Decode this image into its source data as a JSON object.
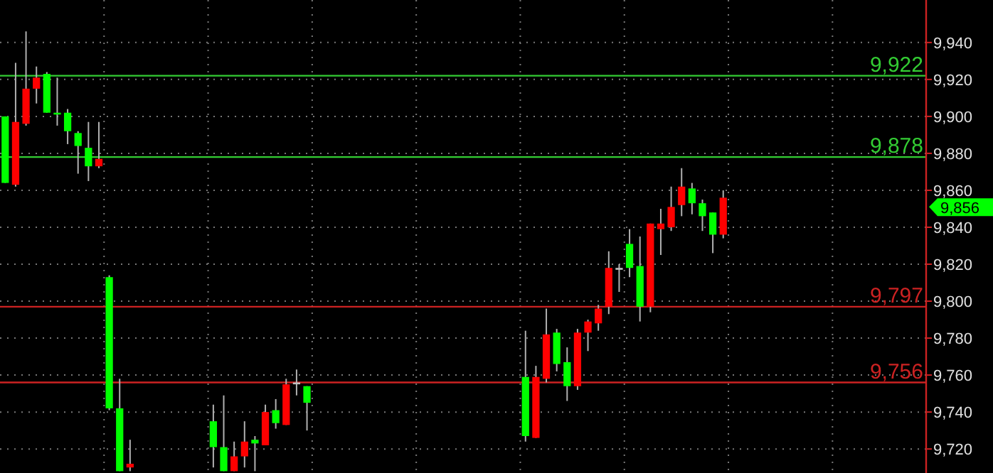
{
  "chart_data": {
    "type": "candlestick",
    "categories": [
      null,
      null,
      null,
      null,
      null,
      null,
      null,
      null,
      null,
      null,
      null,
      null,
      null,
      null,
      null,
      null,
      null,
      null,
      null,
      null,
      null,
      null,
      null,
      null,
      null,
      null,
      null,
      null,
      null,
      null,
      null,
      null,
      null,
      null,
      null,
      null,
      null,
      null,
      null,
      null,
      null,
      null,
      null,
      null,
      null,
      null,
      null,
      null,
      null,
      null,
      null,
      null,
      null,
      null,
      null,
      null,
      null,
      null,
      null,
      null,
      null,
      null,
      null,
      null,
      null,
      null,
      null,
      null,
      null,
      null,
      null,
      null,
      null,
      null,
      null,
      null,
      null,
      null,
      null,
      null,
      null,
      null,
      null,
      null,
      null,
      null,
      null,
      null,
      null
    ],
    "ohlc": [
      [
        9864,
        9900,
        9864,
        9900
      ],
      [
        9897,
        9929,
        9862,
        9863
      ],
      [
        9915,
        9946,
        9895,
        9896
      ],
      [
        9921,
        9927,
        9907,
        9915
      ],
      [
        9902,
        9924,
        9902,
        9923
      ],
      [
        9901,
        9921,
        9895,
        9902
      ],
      [
        9892,
        9904,
        9885,
        9902
      ],
      [
        9884,
        9892,
        9869,
        9891
      ],
      [
        9873,
        9897,
        9865,
        9883
      ],
      [
        9877,
        9897,
        9872,
        9873
      ],
      [
        9742,
        9814,
        9741,
        9813
      ],
      [
        9708,
        9758,
        9708,
        9742
      ],
      [
        9712,
        9725,
        9708,
        9710
      ],
      null,
      null,
      null,
      null,
      null,
      null,
      null,
      [
        9721,
        9744,
        9710,
        9735
      ],
      [
        9708,
        9749,
        9708,
        9721
      ],
      [
        9716,
        9724,
        9708,
        9708
      ],
      [
        9724,
        9735,
        9710,
        9716
      ],
      [
        9723,
        9727,
        9708,
        9725
      ],
      [
        9740,
        9744,
        9722,
        9722
      ],
      [
        9734,
        9747,
        9731,
        9741
      ],
      [
        9755,
        9758,
        9733,
        9733
      ],
      [
        9756,
        9763,
        9749,
        9755
      ],
      [
        9745,
        9754,
        9730,
        9754
      ],
      null,
      null,
      null,
      null,
      null,
      null,
      null,
      null,
      null,
      null,
      null,
      null,
      null,
      null,
      null,
      null,
      null,
      null,
      null,
      null,
      [
        9727,
        9784,
        9724,
        9759
      ],
      [
        9759,
        9765,
        9726,
        9726
      ],
      [
        9782,
        9796,
        9756,
        9758
      ],
      [
        9766,
        9785,
        9762,
        9783
      ],
      [
        9754,
        9775,
        9746,
        9767
      ],
      [
        9783,
        9785,
        9752,
        9754
      ],
      [
        9789,
        9790,
        9773,
        9783
      ],
      [
        9796,
        9798,
        9784,
        9788
      ],
      [
        9818,
        9827,
        9793,
        9797
      ],
      [
        9818,
        9820,
        9805,
        9817
      ],
      [
        9818,
        9839,
        9813,
        9831
      ],
      [
        9797,
        9835,
        9789,
        9819
      ],
      [
        9842,
        9842,
        9794,
        9797
      ],
      [
        9842,
        9850,
        9825,
        9839
      ],
      [
        9851,
        9862,
        9838,
        9840
      ],
      [
        9862,
        9872,
        9846,
        9852
      ],
      [
        9853,
        9864,
        9847,
        9861
      ],
      [
        9846,
        9855,
        9838,
        9853
      ],
      [
        9836,
        9848,
        9826,
        9848
      ],
      [
        9856,
        9860,
        9834,
        9836
      ],
      null,
      null,
      null,
      null,
      null,
      null,
      null,
      null,
      null,
      null,
      null,
      null,
      null,
      null,
      null,
      null,
      null,
      null,
      null
    ],
    "colors": [
      "#00ff00",
      "#ff0000",
      "#ff0000",
      "#ff0000",
      "#00ff00",
      "#00ff00",
      "#00ff00",
      "#00ff00",
      "#00ff00",
      "#ff0000",
      "#00ff00",
      "#00ff00",
      "#ff0000",
      null,
      null,
      null,
      null,
      null,
      null,
      null,
      "#00ff00",
      "#00ff00",
      "#ff0000",
      "#ff0000",
      "#00ff00",
      "#ff0000",
      "#00ff00",
      "#ff0000",
      "#c0c0c0",
      "#00ff00",
      null,
      null,
      null,
      null,
      null,
      null,
      null,
      null,
      null,
      null,
      null,
      null,
      null,
      null,
      null,
      null,
      null,
      null,
      null,
      null,
      "#00ff00",
      "#ff0000",
      "#ff0000",
      "#00ff00",
      "#00ff00",
      "#ff0000",
      "#ff0000",
      "#ff0000",
      "#ff0000",
      "#c0c0c0",
      "#00ff00",
      "#00ff00",
      "#ff0000",
      "#ff0000",
      "#ff0000",
      "#ff0000",
      "#00ff00",
      "#00ff00",
      "#00ff00",
      "#ff0000",
      null,
      null,
      null,
      null,
      null,
      null,
      null,
      null,
      null,
      null,
      null,
      null,
      null,
      null,
      null,
      null,
      null,
      null,
      null
    ],
    "ylim": [
      9707,
      9963
    ],
    "yticks": [
      {
        "value": 9720,
        "label": "9,720"
      },
      {
        "value": 9740,
        "label": "9,740"
      },
      {
        "value": 9760,
        "label": "9,760"
      },
      {
        "value": 9780,
        "label": "9,780"
      },
      {
        "value": 9800,
        "label": "9,800"
      },
      {
        "value": 9820,
        "label": "9,820"
      },
      {
        "value": 9840,
        "label": "9,840"
      },
      {
        "value": 9860,
        "label": "9,860"
      },
      {
        "value": 9880,
        "label": "9,880"
      },
      {
        "value": 9900,
        "label": "9,900"
      },
      {
        "value": 9920,
        "label": "9,920"
      },
      {
        "value": 9940,
        "label": "9,940"
      }
    ],
    "tick_labels": "y",
    "grid": true,
    "ref_lines": [
      {
        "axis": "y",
        "value": 9922,
        "label": "9,922",
        "color": "#33cc33"
      },
      {
        "axis": "y",
        "value": 9878,
        "label": "9,878",
        "color": "#33cc33"
      },
      {
        "axis": "y",
        "value": 9797,
        "label": "9,797",
        "color": "#cc2222"
      },
      {
        "axis": "y",
        "value": 9756,
        "label": "9,756",
        "color": "#cc2222"
      }
    ],
    "annotations": [
      "9,856"
    ]
  }
}
